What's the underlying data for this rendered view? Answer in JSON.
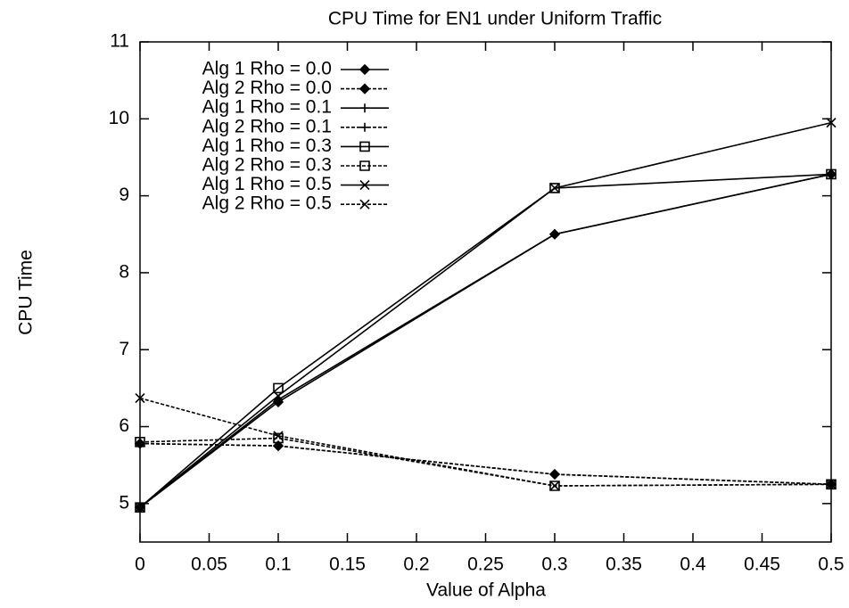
{
  "chart_data": {
    "type": "line",
    "title": "CPU Time for EN1 under Uniform Traffic",
    "x_label": "Value of Alpha",
    "y_label": "CPU Time",
    "x": [
      0,
      0.1,
      0.3,
      0.5
    ],
    "xlim": [
      0,
      0.5
    ],
    "xticks": [
      0,
      0.05,
      0.1,
      0.15,
      0.2,
      0.25,
      0.3,
      0.35,
      0.4,
      0.45,
      0.5
    ],
    "ylim": [
      4.5,
      11
    ],
    "yticks": [
      5,
      6,
      7,
      8,
      9,
      10,
      11
    ],
    "legend": "upper left",
    "series": [
      {
        "name": "Alg 1 Rho = 0.0",
        "color": "#000000",
        "marker": "diamond",
        "dashed": false,
        "values": [
          4.95,
          6.32,
          8.5,
          9.28
        ]
      },
      {
        "name": "Alg 2 Rho = 0.0",
        "color": "#000000",
        "marker": "diamond",
        "dashed": true,
        "values": [
          5.78,
          5.75,
          5.38,
          5.25
        ]
      },
      {
        "name": "Alg 1 Rho = 0.1",
        "color": "#000000",
        "marker": "plus",
        "dashed": false,
        "values": [
          4.95,
          6.35,
          8.5,
          9.28
        ]
      },
      {
        "name": "Alg 2 Rho = 0.1",
        "color": "#000000",
        "marker": "plus",
        "dashed": true,
        "values": [
          5.78,
          5.75,
          5.38,
          5.25
        ]
      },
      {
        "name": "Alg 1 Rho = 0.3",
        "color": "#000000",
        "marker": "square",
        "dashed": false,
        "values": [
          4.95,
          6.5,
          9.1,
          9.28
        ]
      },
      {
        "name": "Alg 2 Rho = 0.3",
        "color": "#000000",
        "marker": "square",
        "dashed": true,
        "values": [
          5.8,
          5.85,
          5.23,
          5.25
        ]
      },
      {
        "name": "Alg 1 Rho = 0.5",
        "color": "#000000",
        "marker": "x",
        "dashed": false,
        "values": [
          4.95,
          6.4,
          9.1,
          9.95
        ]
      },
      {
        "name": "Alg 2 Rho = 0.5",
        "color": "#000000",
        "marker": "x",
        "dashed": true,
        "values": [
          6.37,
          5.88,
          5.23,
          5.25
        ]
      }
    ]
  }
}
